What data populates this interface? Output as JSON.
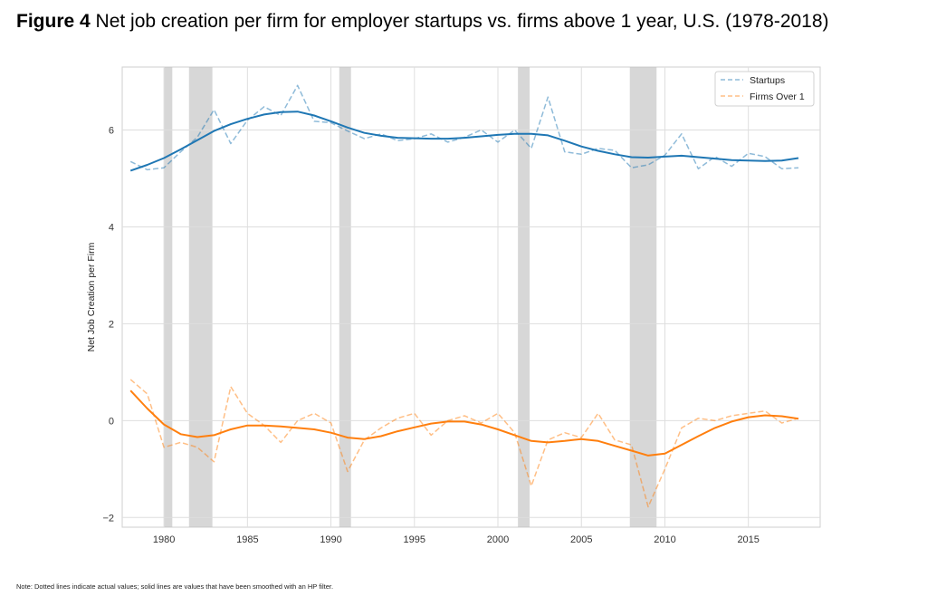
{
  "figure": {
    "label": "Figure 4",
    "title": "Net job creation per firm for employer startups vs. firms above 1 year, U.S. (1978-2018)",
    "note": "Note: Dotted lines indicate actual values; solid lines are values that have been smoothed with an HP filter."
  },
  "chart_data": {
    "type": "line",
    "ylabel": "Net Job Creation per Firm",
    "xlabel": "",
    "xlim": [
      1977.5,
      2019.3
    ],
    "ylim": [
      -2.2,
      7.3
    ],
    "xticks": [
      1980,
      1985,
      1990,
      1995,
      2000,
      2005,
      2010,
      2015
    ],
    "xtick_labels": [
      "1980",
      "1985",
      "1990",
      "1995",
      "2000",
      "2005",
      "2010",
      "2015"
    ],
    "yticks": [
      -2,
      0,
      2,
      4,
      6
    ],
    "ytick_labels": [
      "−2",
      "0",
      "2",
      "4",
      "6"
    ],
    "grid": true,
    "legend_position": "top-right",
    "recessions": [
      [
        1980.0,
        1980.5
      ],
      [
        1981.5,
        1982.9
      ],
      [
        1990.5,
        1991.2
      ],
      [
        2001.2,
        2001.9
      ],
      [
        2007.9,
        2009.5
      ]
    ],
    "x": [
      1978,
      1979,
      1980,
      1981,
      1982,
      1983,
      1984,
      1985,
      1986,
      1987,
      1988,
      1989,
      1990,
      1991,
      1992,
      1993,
      1994,
      1995,
      1996,
      1997,
      1998,
      1999,
      2000,
      2001,
      2002,
      2003,
      2004,
      2005,
      2006,
      2007,
      2008,
      2009,
      2010,
      2011,
      2012,
      2013,
      2014,
      2015,
      2016,
      2017,
      2018
    ],
    "series": [
      {
        "name": "Startups",
        "style": "dashed",
        "color": "#1f77b4",
        "values": [
          5.35,
          5.18,
          5.22,
          5.55,
          5.85,
          6.42,
          5.72,
          6.2,
          6.48,
          6.3,
          6.92,
          6.18,
          6.15,
          5.98,
          5.82,
          5.92,
          5.78,
          5.82,
          5.92,
          5.75,
          5.85,
          6.0,
          5.75,
          6.0,
          5.62,
          6.68,
          5.55,
          5.5,
          5.62,
          5.58,
          5.22,
          5.28,
          5.48,
          5.92,
          5.2,
          5.45,
          5.25,
          5.52,
          5.45,
          5.2,
          5.22
        ]
      },
      {
        "name": "Firms Over 1",
        "style": "dashed",
        "color": "#ff7f0e",
        "values": [
          0.85,
          0.55,
          -0.55,
          -0.45,
          -0.55,
          -0.85,
          0.7,
          0.15,
          -0.1,
          -0.45,
          0.0,
          0.15,
          -0.05,
          -1.05,
          -0.4,
          -0.15,
          0.05,
          0.15,
          -0.3,
          0.0,
          0.1,
          -0.05,
          0.15,
          -0.25,
          -1.35,
          -0.4,
          -0.25,
          -0.35,
          0.15,
          -0.4,
          -0.5,
          -1.78,
          -1.0,
          -0.15,
          0.05,
          0.0,
          0.1,
          0.15,
          0.2,
          -0.05,
          0.05
        ]
      },
      {
        "name": "Startups (HP smoothed)",
        "style": "solid",
        "color": "#1f77b4",
        "values": [
          5.16,
          5.28,
          5.42,
          5.6,
          5.79,
          5.98,
          6.12,
          6.23,
          6.32,
          6.37,
          6.38,
          6.3,
          6.18,
          6.05,
          5.94,
          5.88,
          5.84,
          5.83,
          5.82,
          5.82,
          5.84,
          5.87,
          5.9,
          5.92,
          5.92,
          5.89,
          5.78,
          5.66,
          5.57,
          5.5,
          5.44,
          5.43,
          5.45,
          5.47,
          5.44,
          5.41,
          5.38,
          5.37,
          5.36,
          5.37,
          5.42
        ]
      },
      {
        "name": "Firms Over 1 (HP smoothed)",
        "style": "solid",
        "color": "#ff7f0e",
        "values": [
          0.62,
          0.25,
          -0.08,
          -0.28,
          -0.34,
          -0.3,
          -0.18,
          -0.1,
          -0.1,
          -0.12,
          -0.15,
          -0.18,
          -0.25,
          -0.35,
          -0.38,
          -0.32,
          -0.22,
          -0.14,
          -0.06,
          -0.02,
          -0.02,
          -0.08,
          -0.18,
          -0.3,
          -0.42,
          -0.45,
          -0.42,
          -0.38,
          -0.42,
          -0.52,
          -0.62,
          -0.72,
          -0.68,
          -0.5,
          -0.32,
          -0.15,
          -0.02,
          0.07,
          0.11,
          0.09,
          0.04
        ]
      }
    ]
  },
  "legend": {
    "items": [
      {
        "label": "Startups",
        "color": "#1f77b4"
      },
      {
        "label": "Firms Over 1",
        "color": "#ff7f0e"
      }
    ]
  }
}
